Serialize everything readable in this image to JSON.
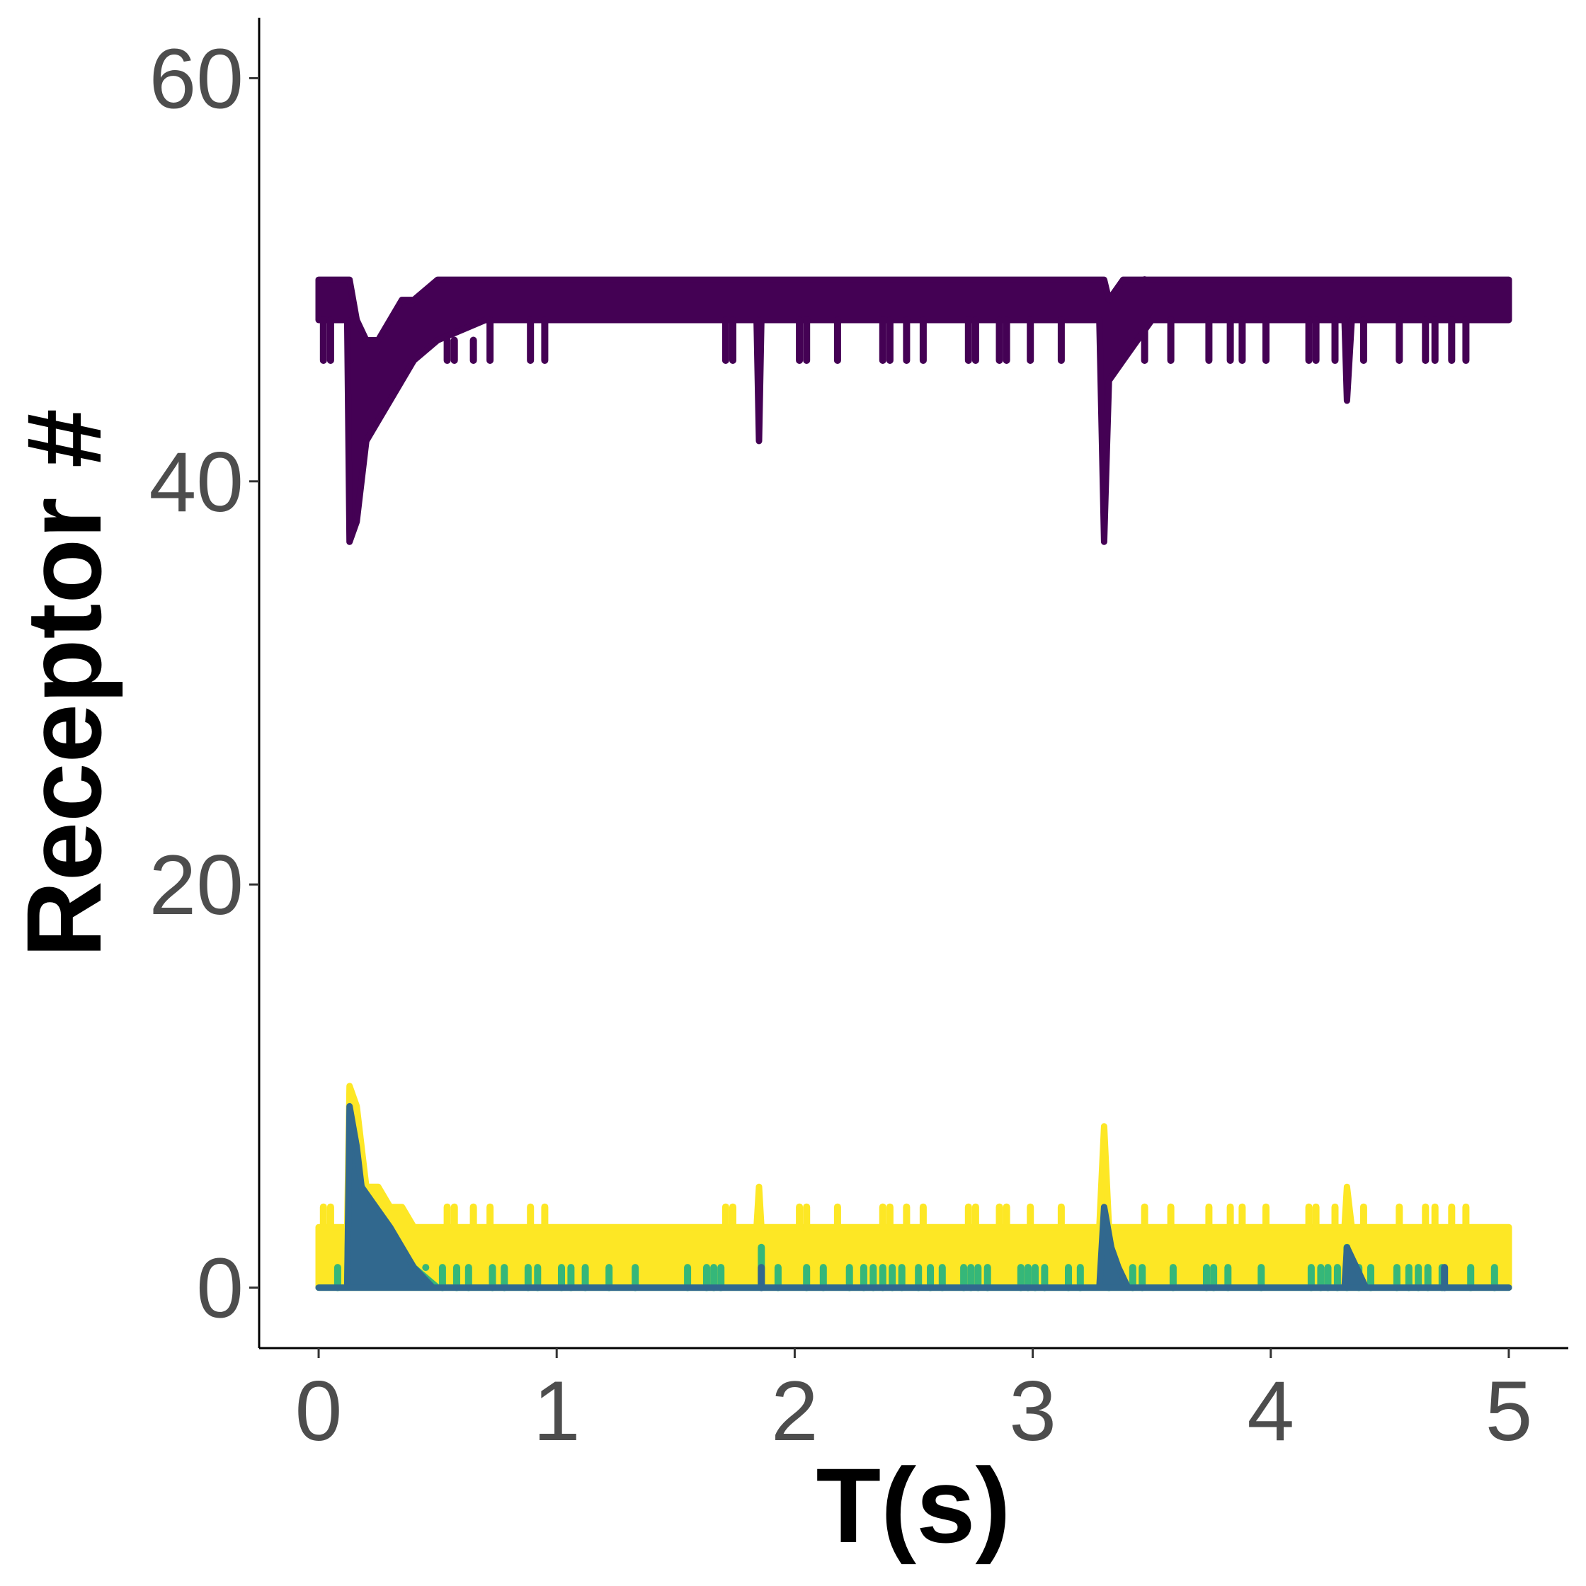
{
  "chart_data": {
    "type": "line",
    "xlabel": "T(s)",
    "ylabel": "Receptor #",
    "xlim": [
      -0.25,
      5.25
    ],
    "ylim": [
      -3,
      63
    ],
    "x_ticks": [
      0,
      1,
      2,
      3,
      4,
      5
    ],
    "x_tick_labels": [
      "0",
      "1",
      "2",
      "3",
      "4",
      "5"
    ],
    "y_ticks": [
      0,
      20,
      40,
      60
    ],
    "y_tick_labels": [
      "0",
      "20",
      "40",
      "60"
    ],
    "grid": false,
    "legend": "none",
    "series": [
      {
        "color": "#440154",
        "band": [
          [
            0,
            48,
            50
          ],
          [
            0.12,
            48,
            50
          ],
          [
            0.13,
            37,
            50
          ],
          [
            0.16,
            38,
            48
          ],
          [
            0.2,
            42,
            47
          ],
          [
            0.25,
            43,
            47
          ],
          [
            0.3,
            44,
            48
          ],
          [
            0.35,
            45,
            49
          ],
          [
            0.4,
            46,
            49
          ],
          [
            0.5,
            47,
            50
          ],
          [
            0.7,
            48,
            50
          ],
          [
            1.84,
            48,
            50
          ],
          [
            1.85,
            42,
            50
          ],
          [
            1.86,
            48,
            50
          ],
          [
            3.28,
            48,
            50
          ],
          [
            3.3,
            37,
            50
          ],
          [
            3.32,
            45,
            49
          ],
          [
            3.38,
            46,
            50
          ],
          [
            3.5,
            48,
            50
          ],
          [
            4.31,
            48,
            50
          ],
          [
            4.32,
            44,
            50
          ],
          [
            4.34,
            48,
            50
          ],
          [
            5,
            48,
            50
          ]
        ],
        "spikes": [
          [
            0.02,
            46
          ],
          [
            0.05,
            46
          ],
          [
            0.54,
            46
          ],
          [
            0.57,
            46
          ],
          [
            0.65,
            46
          ],
          [
            0.72,
            46
          ],
          [
            0.89,
            46
          ],
          [
            0.95,
            46
          ],
          [
            1.71,
            46
          ],
          [
            1.74,
            46
          ],
          [
            2.02,
            46
          ],
          [
            2.05,
            46
          ],
          [
            2.18,
            46
          ],
          [
            2.37,
            46
          ],
          [
            2.4,
            46
          ],
          [
            2.47,
            46
          ],
          [
            2.54,
            46
          ],
          [
            2.73,
            46
          ],
          [
            2.76,
            46
          ],
          [
            2.86,
            46
          ],
          [
            2.89,
            46
          ],
          [
            2.99,
            46
          ],
          [
            3.12,
            46
          ],
          [
            3.47,
            46
          ],
          [
            3.58,
            46
          ],
          [
            3.74,
            46
          ],
          [
            3.83,
            46
          ],
          [
            3.88,
            46
          ],
          [
            3.98,
            46
          ],
          [
            4.16,
            46
          ],
          [
            4.19,
            46
          ],
          [
            4.27,
            46
          ],
          [
            4.39,
            46
          ],
          [
            4.54,
            46
          ],
          [
            4.65,
            46
          ],
          [
            4.69,
            46
          ],
          [
            4.76,
            46
          ],
          [
            4.82,
            46
          ]
        ]
      },
      {
        "color": "#fde725",
        "band": [
          [
            0,
            0,
            3
          ],
          [
            0.12,
            0,
            3
          ],
          [
            0.13,
            0,
            10
          ],
          [
            0.16,
            0,
            9
          ],
          [
            0.2,
            0,
            5
          ],
          [
            0.25,
            0,
            5
          ],
          [
            0.3,
            0,
            4
          ],
          [
            0.35,
            0,
            4
          ],
          [
            0.4,
            0,
            3
          ],
          [
            0.5,
            0,
            3
          ],
          [
            1.84,
            0,
            3
          ],
          [
            1.85,
            0,
            5
          ],
          [
            1.86,
            0,
            3
          ],
          [
            3.28,
            0,
            3
          ],
          [
            3.3,
            0,
            8
          ],
          [
            3.32,
            0,
            3
          ],
          [
            4.31,
            0,
            3
          ],
          [
            4.32,
            0,
            5
          ],
          [
            4.34,
            0,
            3
          ],
          [
            5,
            0,
            3
          ]
        ],
        "spikes": [
          [
            0.02,
            4
          ],
          [
            0.05,
            4
          ],
          [
            0.54,
            4
          ],
          [
            0.57,
            4
          ],
          [
            0.65,
            4
          ],
          [
            0.72,
            4
          ],
          [
            0.89,
            4
          ],
          [
            0.95,
            4
          ],
          [
            1.71,
            4
          ],
          [
            1.74,
            4
          ],
          [
            2.02,
            4
          ],
          [
            2.05,
            4
          ],
          [
            2.18,
            4
          ],
          [
            2.37,
            4
          ],
          [
            2.4,
            4
          ],
          [
            2.47,
            4
          ],
          [
            2.54,
            4
          ],
          [
            2.73,
            4
          ],
          [
            2.76,
            4
          ],
          [
            2.86,
            4
          ],
          [
            2.89,
            4
          ],
          [
            2.99,
            4
          ],
          [
            3.12,
            4
          ],
          [
            3.47,
            4
          ],
          [
            3.58,
            4
          ],
          [
            3.74,
            4
          ],
          [
            3.83,
            4
          ],
          [
            3.88,
            4
          ],
          [
            3.98,
            4
          ],
          [
            4.16,
            4
          ],
          [
            4.19,
            4
          ],
          [
            4.27,
            4
          ],
          [
            4.39,
            4
          ],
          [
            4.54,
            4
          ],
          [
            4.65,
            4
          ],
          [
            4.69,
            4
          ],
          [
            4.76,
            4
          ],
          [
            4.82,
            4
          ]
        ]
      },
      {
        "color": "#35b779",
        "band": [
          [
            0,
            0,
            0
          ],
          [
            0.12,
            0,
            0
          ],
          [
            0.13,
            0,
            7
          ],
          [
            0.16,
            0,
            5
          ],
          [
            0.2,
            0,
            4
          ],
          [
            0.25,
            0,
            2
          ],
          [
            0.3,
            0,
            1
          ],
          [
            0.4,
            0,
            1
          ],
          [
            0.5,
            0,
            0
          ],
          [
            5,
            0,
            0
          ]
        ],
        "spikes": [
          [
            0.08,
            1
          ],
          [
            0.15,
            6
          ],
          [
            0.18,
            4
          ],
          [
            0.22,
            3
          ],
          [
            0.27,
            2
          ],
          [
            0.45,
            1
          ],
          [
            0.52,
            1
          ],
          [
            0.58,
            1
          ],
          [
            0.63,
            1
          ],
          [
            0.73,
            1
          ],
          [
            0.78,
            1
          ],
          [
            0.88,
            1
          ],
          [
            0.92,
            1
          ],
          [
            1.02,
            1
          ],
          [
            1.06,
            1
          ],
          [
            1.12,
            1
          ],
          [
            1.22,
            1
          ],
          [
            1.33,
            1
          ],
          [
            1.55,
            1
          ],
          [
            1.63,
            1
          ],
          [
            1.66,
            1
          ],
          [
            1.69,
            1
          ],
          [
            1.86,
            2
          ],
          [
            1.93,
            1
          ],
          [
            2.05,
            1
          ],
          [
            2.12,
            1
          ],
          [
            2.23,
            1
          ],
          [
            2.29,
            1
          ],
          [
            2.33,
            1
          ],
          [
            2.37,
            1
          ],
          [
            2.41,
            1
          ],
          [
            2.45,
            1
          ],
          [
            2.52,
            1
          ],
          [
            2.57,
            1
          ],
          [
            2.62,
            1
          ],
          [
            2.71,
            1
          ],
          [
            2.74,
            1
          ],
          [
            2.77,
            1
          ],
          [
            2.81,
            1
          ],
          [
            2.95,
            1
          ],
          [
            2.98,
            1
          ],
          [
            3.01,
            1
          ],
          [
            3.05,
            1
          ],
          [
            3.15,
            1
          ],
          [
            3.2,
            1
          ],
          [
            3.32,
            2
          ],
          [
            3.42,
            1
          ],
          [
            3.46,
            1
          ],
          [
            3.59,
            1
          ],
          [
            3.73,
            1
          ],
          [
            3.76,
            1
          ],
          [
            3.82,
            1
          ],
          [
            3.96,
            1
          ],
          [
            4.17,
            1
          ],
          [
            4.21,
            1
          ],
          [
            4.24,
            1
          ],
          [
            4.28,
            1
          ],
          [
            4.32,
            2
          ],
          [
            4.37,
            1
          ],
          [
            4.42,
            1
          ],
          [
            4.53,
            1
          ],
          [
            4.58,
            1
          ],
          [
            4.62,
            1
          ],
          [
            4.66,
            1
          ],
          [
            4.72,
            1
          ],
          [
            4.84,
            1
          ],
          [
            4.94,
            1
          ]
        ]
      },
      {
        "color": "#31688e",
        "band": [
          [
            0,
            0,
            0
          ],
          [
            0.12,
            0,
            0
          ],
          [
            0.13,
            0,
            9
          ],
          [
            0.16,
            0,
            7
          ],
          [
            0.18,
            0,
            5
          ],
          [
            0.24,
            0,
            4
          ],
          [
            0.3,
            0,
            3
          ],
          [
            0.35,
            0,
            2
          ],
          [
            0.4,
            0,
            1
          ],
          [
            0.48,
            0,
            0
          ],
          [
            3.28,
            0,
            0
          ],
          [
            3.3,
            0,
            4
          ],
          [
            3.33,
            0,
            2
          ],
          [
            3.36,
            0,
            1
          ],
          [
            3.4,
            0,
            0
          ],
          [
            4.31,
            0,
            0
          ],
          [
            4.32,
            0,
            2
          ],
          [
            4.36,
            0,
            1
          ],
          [
            4.4,
            0,
            0
          ],
          [
            5,
            0,
            0
          ]
        ],
        "spikes": [
          [
            1.86,
            1
          ],
          [
            4.73,
            1
          ]
        ]
      }
    ]
  }
}
